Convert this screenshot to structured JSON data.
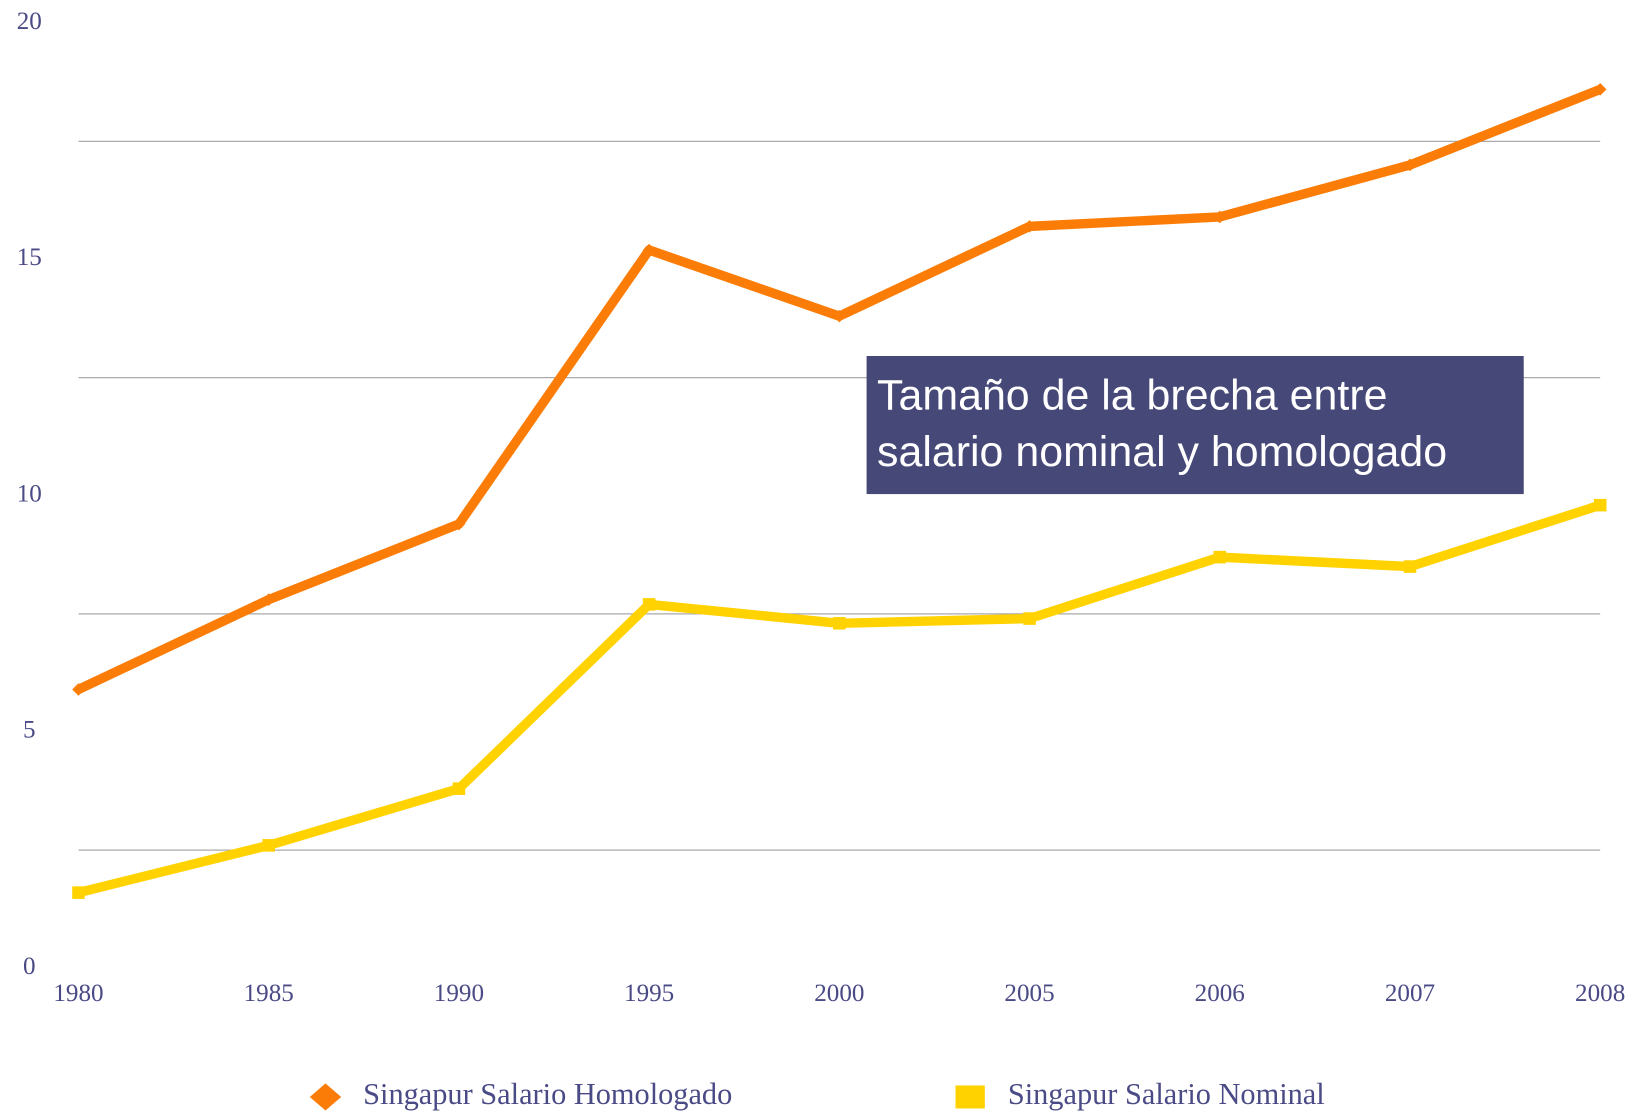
{
  "chart_data": {
    "type": "line",
    "categories": [
      "1980",
      "1985",
      "1990",
      "1995",
      "2000",
      "2005",
      "2006",
      "2007",
      "2008"
    ],
    "series": [
      {
        "name": "Singapur Salario Homologado",
        "color": "#fb7d07",
        "marker": "diamond",
        "values": [
          5.9,
          7.8,
          9.4,
          15.2,
          13.8,
          15.7,
          15.9,
          17.0,
          18.6
        ]
      },
      {
        "name": "Singapur Salario Nominal",
        "color": "#ffd200",
        "marker": "square",
        "values": [
          1.6,
          2.6,
          3.8,
          7.7,
          7.3,
          7.4,
          8.7,
          8.5,
          9.8
        ]
      }
    ],
    "ylim": [
      0,
      20
    ],
    "yticks": [
      0,
      5,
      10,
      15,
      20
    ],
    "grid": true,
    "annotation": "Tamaño de la brecha entre salario nominal y homologado"
  }
}
